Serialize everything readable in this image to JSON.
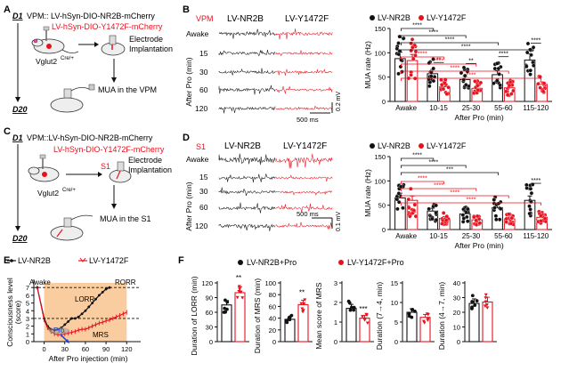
{
  "figure": {
    "panels": {
      "A": {
        "letter": "A",
        "day_start": "D1",
        "line1": "VPM:: LV-hSyn-DIO-NR2B-mCherry",
        "line2": "LV-hSyn-DIO-Y1472F-mCherry",
        "mouse_label": "Vglut2",
        "mouse_sup": "Cre/+",
        "implant": [
          "Electrode",
          "Implantation"
        ],
        "mua_label": "MUA in the VPM",
        "day_end": "D20"
      },
      "B": {
        "letter": "B",
        "region": "VPM",
        "col1": "LV-NR2B",
        "col2": "LV-Y1472F",
        "rows": [
          "Awake",
          "15",
          "30",
          "60",
          "120"
        ],
        "axis_label": "After Pro (min)",
        "scale_time": "500 ms",
        "scale_amp": "0.2 mV"
      },
      "C": {
        "letter": "C",
        "day_start": "D1",
        "line1": "VPM::LV-hSyn-DIO-NR2B-mCherry",
        "line2": "LV-hSyn-DIO-Y1472F-mCherry",
        "mouse_label": "Vglut2",
        "mouse_sup": "Cre/+",
        "s1_label": "S1",
        "implant": [
          "Electrode",
          "Implantation"
        ],
        "mua_label": "MUA in the S1",
        "day_end": "D20"
      },
      "D": {
        "letter": "D",
        "region": "S1",
        "col1": "LV-NR2B",
        "col2": "LV-Y1472F",
        "rows": [
          "Awake",
          "15",
          "30",
          "60",
          "120"
        ],
        "axis_label": "After Pro (min)",
        "scale_time": "500 ms",
        "scale_amp": "0.1 mV"
      },
      "E": {
        "letter": "E",
        "legend1": "LV-NR2B",
        "legend2": "LV-Y1472F",
        "labels": {
          "awake": "Awake",
          "rorr": "RORR",
          "lorr": "LORR",
          "mrs": "MRS",
          "pro": "Pro"
        }
      },
      "F": {
        "letter": "F",
        "legend1": "LV-NR2B+Pro",
        "legend2": "LV-Y1472F+Pro"
      }
    },
    "colors": {
      "black": "#111111",
      "red": "#e8121f",
      "orange_band": "#f8c48e",
      "pale": "#fde8d2"
    }
  },
  "chart_data": [
    {
      "id": "B-bar",
      "type": "bar",
      "legend": [
        "LV-NR2B",
        "LV-Y1472F"
      ],
      "categories": [
        "Awake",
        "10-15",
        "25-30",
        "55-60",
        "115-120"
      ],
      "series": [
        {
          "name": "LV-NR2B",
          "values": [
            88,
            57,
            45,
            55,
            85
          ]
        },
        {
          "name": "LV-Y1472F",
          "values": [
            84,
            30,
            27,
            28,
            35
          ]
        }
      ],
      "ylabel": "MUA rate (Hz)",
      "xlabel": "After Pro (min)",
      "yticks": [
        0,
        50,
        100,
        150
      ],
      "ylim": [
        0,
        150
      ],
      "within_group_sig": [
        "",
        "**",
        "**",
        "****",
        "****"
      ],
      "black_brackets": [
        [
          "Awake",
          "10-15",
          "****"
        ],
        [
          "Awake",
          "25-30",
          "****"
        ],
        [
          "Awake",
          "55-60",
          "****"
        ],
        [
          "Awake",
          "115-120",
          "****"
        ]
      ],
      "red_brackets": [
        [
          "Awake",
          "10-15",
          "****"
        ],
        [
          "Awake",
          "25-30",
          "****"
        ],
        [
          "Awake",
          "55-60",
          "****"
        ],
        [
          "Awake",
          "115-120",
          "****"
        ]
      ]
    },
    {
      "id": "D-bar",
      "type": "bar",
      "legend": [
        "LV-NR2B",
        "LV-Y1472F"
      ],
      "categories": [
        "Awake",
        "10-15",
        "25-30",
        "55-60",
        "115-120"
      ],
      "series": [
        {
          "name": "LV-NR2B",
          "values": [
            65,
            38,
            32,
            45,
            60
          ]
        },
        {
          "name": "LV-Y1472F",
          "values": [
            60,
            23,
            20,
            22,
            25
          ]
        }
      ],
      "ylabel": "MUA rate (Hz)",
      "xlabel": "After Pro (min)",
      "yticks": [
        0,
        50,
        100,
        150
      ],
      "ylim": [
        0,
        150
      ],
      "within_group_sig": [
        "",
        "",
        "",
        "",
        "****"
      ],
      "black_brackets": [
        [
          "Awake",
          "10-15",
          "****"
        ],
        [
          "Awake",
          "25-30",
          "****"
        ],
        [
          "Awake",
          "55-60",
          "***"
        ]
      ],
      "red_brackets": [
        [
          "Awake",
          "10-15",
          "****"
        ],
        [
          "Awake",
          "25-30",
          "****"
        ],
        [
          "Awake",
          "55-60",
          "****"
        ],
        [
          "Awake",
          "115-120",
          "****"
        ]
      ]
    },
    {
      "id": "E-line",
      "type": "line",
      "xlabel": "After Pro injection (min)",
      "ylabel": "Consciousness level (score)",
      "xticks": [
        0,
        30,
        60,
        90,
        120
      ],
      "yticks": [
        0,
        1,
        2,
        3,
        4,
        5,
        6,
        7
      ],
      "xlim": [
        -15,
        130
      ],
      "ylim": [
        0,
        7.6
      ],
      "series": [
        {
          "name": "LV-NR2B",
          "x": [
            -10,
            0,
            5,
            10,
            15,
            20,
            25,
            30,
            35,
            40,
            45,
            50,
            55,
            60,
            65,
            70,
            75,
            80,
            85,
            90,
            95
          ],
          "y": [
            7,
            3,
            2,
            1.6,
            1.5,
            1.6,
            1.8,
            2.2,
            2.6,
            3,
            3,
            3.2,
            3.6,
            4,
            4.5,
            5,
            5.5,
            6,
            6.4,
            6.8,
            7
          ]
        },
        {
          "name": "LV-Y1472F",
          "x": [
            -10,
            0,
            5,
            10,
            15,
            20,
            25,
            30,
            35,
            40,
            45,
            50,
            55,
            60,
            65,
            70,
            75,
            80,
            85,
            90,
            95,
            100,
            105,
            110,
            115,
            120
          ],
          "y": [
            7,
            2.8,
            1.8,
            1.3,
            1.0,
            0.9,
            0.9,
            1.0,
            1.1,
            1.2,
            1.3,
            1.5,
            1.6,
            1.6,
            1.8,
            2.0,
            2.2,
            2.4,
            2.5,
            2.7,
            2.8,
            3.0,
            3.2,
            3.4,
            3.6,
            3.8
          ]
        }
      ],
      "reference_lines": [
        7,
        3
      ]
    },
    {
      "id": "F1",
      "type": "bar",
      "ylabel": "Duration of LORR (min)",
      "categories": [
        "LV-NR2B+Pro",
        "LV-Y1472F+Pro"
      ],
      "values": [
        75,
        100
      ],
      "yticks": [
        0,
        30,
        60,
        90,
        120
      ],
      "ylim": [
        0,
        120
      ],
      "sig": "**"
    },
    {
      "id": "F2",
      "type": "bar",
      "ylabel": "Duration of MRS (min)",
      "categories": [
        "LV-NR2B+Pro",
        "LV-Y1472F+Pro"
      ],
      "values": [
        38,
        63
      ],
      "yticks": [
        0,
        20,
        40,
        60,
        80,
        100
      ],
      "ylim": [
        0,
        100
      ],
      "sig": "**"
    },
    {
      "id": "F3",
      "type": "bar",
      "ylabel": "Mean score of MRS",
      "categories": [
        "LV-NR2B+Pro",
        "LV-Y1472F+Pro"
      ],
      "values": [
        1.7,
        1.2
      ],
      "yticks": [
        0,
        1,
        2,
        3
      ],
      "ylim": [
        0,
        3
      ],
      "sig": "***"
    },
    {
      "id": "F4",
      "type": "bar",
      "ylabel": "Duration (7→4, min)",
      "categories": [
        "LV-NR2B+Pro",
        "LV-Y1472F+Pro"
      ],
      "values": [
        7.5,
        6.2
      ],
      "yticks": [
        0,
        5,
        10,
        15
      ],
      "ylim": [
        0,
        15
      ],
      "sig": ""
    },
    {
      "id": "F5",
      "type": "bar",
      "ylabel": "Duration (4→7, min)",
      "categories": [
        "LV-NR2B+Pro",
        "LV-Y1472F+Pro"
      ],
      "values": [
        26,
        27
      ],
      "yticks": [
        0,
        10,
        20,
        30,
        40
      ],
      "ylim": [
        0,
        40
      ],
      "sig": ""
    }
  ]
}
